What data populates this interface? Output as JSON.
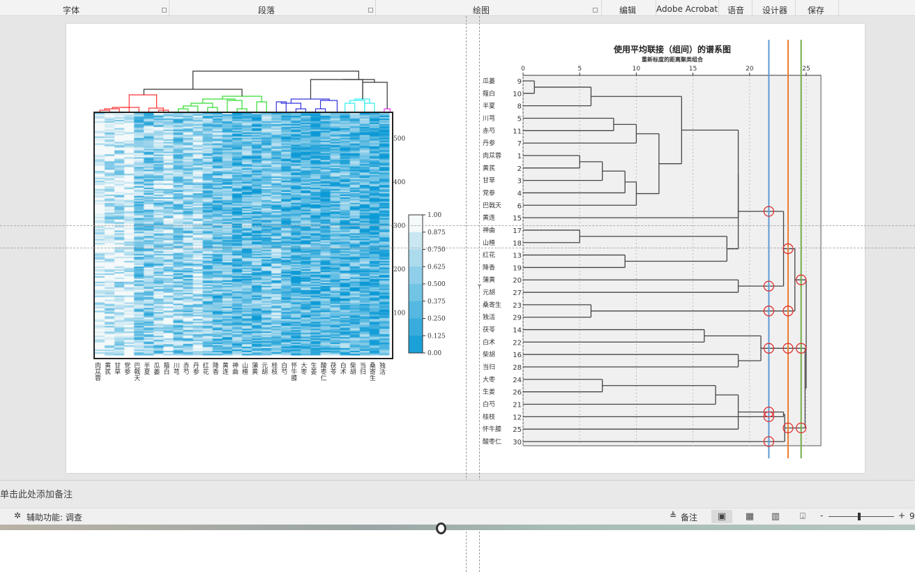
{
  "ribbon": {
    "groups": [
      {
        "label": "字体",
        "launcher": true
      },
      {
        "label": "段落",
        "launcher": true
      },
      {
        "label": "绘图",
        "launcher": true
      },
      {
        "label": "编辑"
      },
      {
        "label": "Adobe Acrobat"
      },
      {
        "label": "语音"
      },
      {
        "label": "设计器"
      },
      {
        "label": "保存"
      }
    ]
  },
  "notes": {
    "placeholder": "单击此处添加备注"
  },
  "status": {
    "accessibility": "辅助功能: 调查",
    "notes_button": "备注",
    "zoom_minus": "-",
    "zoom_plus": "+",
    "zoom_value_partial": "9"
  },
  "heatmap": {
    "columns": [
      "肉苁蓉",
      "黄芪",
      "甘草",
      "党参",
      "巴戟天",
      "半夏",
      "瓜蒌",
      "薤白",
      "川芎",
      "赤芍",
      "丹参",
      "红花",
      "降香",
      "黄连",
      "神曲",
      "山楂",
      "蒲黄",
      "元胡",
      "桂枝",
      "白芍",
      "怀牛膝",
      "大枣",
      "生姜",
      "酸枣仁",
      "茯苓",
      "白术",
      "柴胡",
      "当归",
      "桑寄生",
      "独活"
    ],
    "y_ticks": [
      100,
      200,
      300,
      400,
      500
    ],
    "y_range": [
      0,
      550
    ],
    "colorbar_ticks": [
      "1.00",
      "0.875",
      "0.750",
      "0.625",
      "0.500",
      "0.375",
      "0.250",
      "0.125",
      "0.00"
    ],
    "colors": {
      "low": "#0d9ad6",
      "high": "#f4f9f9"
    },
    "cluster_colors": [
      "#ff3333",
      "#33dd33",
      "#3333dd",
      "#33eeee",
      "#ee33ee",
      "#333333"
    ]
  },
  "dendrogram": {
    "title": "使用平均联接（组间）的谱系图",
    "subtitle": "重新标度的距离聚类组合",
    "x_ticks": [
      0,
      5,
      10,
      15,
      20,
      25
    ],
    "x_range": [
      0,
      26.3
    ],
    "y_axis_label": "Y",
    "leaves": [
      {
        "id": 9,
        "name": "瓜蒌"
      },
      {
        "id": 10,
        "name": "薤白"
      },
      {
        "id": 8,
        "name": "半夏"
      },
      {
        "id": 5,
        "name": "川芎"
      },
      {
        "id": 11,
        "name": "赤芍"
      },
      {
        "id": 7,
        "name": "丹参"
      },
      {
        "id": 1,
        "name": "肉苁蓉"
      },
      {
        "id": 2,
        "name": "黄芪"
      },
      {
        "id": 3,
        "name": "甘草"
      },
      {
        "id": 4,
        "name": "党参"
      },
      {
        "id": 6,
        "name": "巴戟天"
      },
      {
        "id": 15,
        "name": "黄连"
      },
      {
        "id": 17,
        "name": "神曲"
      },
      {
        "id": 18,
        "name": "山楂"
      },
      {
        "id": 13,
        "name": "红花"
      },
      {
        "id": 19,
        "name": "降香"
      },
      {
        "id": 20,
        "name": "蒲黄"
      },
      {
        "id": 27,
        "name": "元胡"
      },
      {
        "id": 23,
        "name": "桑寄生"
      },
      {
        "id": 29,
        "name": "独活"
      },
      {
        "id": 14,
        "name": "茯苓"
      },
      {
        "id": 22,
        "name": "白术"
      },
      {
        "id": 16,
        "name": "柴胡"
      },
      {
        "id": 28,
        "name": "当归"
      },
      {
        "id": 24,
        "name": "大枣"
      },
      {
        "id": 26,
        "name": "生姜"
      },
      {
        "id": 21,
        "name": "白芍"
      },
      {
        "id": 12,
        "name": "桂枝"
      },
      {
        "id": 25,
        "name": "怀牛膝"
      },
      {
        "id": 30,
        "name": "酸枣仁"
      }
    ],
    "merges": [
      [
        9,
        10,
        1
      ],
      [
        "c0",
        8,
        6
      ],
      [
        5,
        11,
        8
      ],
      [
        "c2",
        7,
        10
      ],
      [
        1,
        2,
        5
      ],
      [
        "c4",
        3,
        7
      ],
      [
        "c5",
        4,
        9
      ],
      [
        "c6",
        6,
        10
      ],
      [
        "c3",
        "c7",
        12
      ],
      [
        "c1",
        "c8",
        14
      ],
      [
        "c9",
        15,
        19
      ],
      [
        17,
        18,
        5
      ],
      [
        13,
        19,
        9
      ],
      [
        "c11",
        "c12",
        18
      ],
      [
        "c10",
        "c13",
        19
      ],
      [
        20,
        27,
        19
      ],
      [
        "c14",
        "c15",
        23
      ],
      [
        23,
        29,
        6
      ],
      [
        "c16",
        "c17",
        24
      ],
      [
        14,
        22,
        16
      ],
      [
        16,
        28,
        19
      ],
      [
        "c19",
        "c20",
        21
      ],
      [
        24,
        26,
        7
      ],
      [
        "c22",
        21,
        17
      ],
      [
        "c23",
        25,
        19
      ],
      [
        "c24",
        12,
        23
      ],
      [
        "c25",
        30,
        23.1
      ],
      [
        "c21",
        "c26",
        24.9
      ],
      [
        "c18",
        "c27",
        25
      ]
    ],
    "cut_lines": [
      {
        "distance": 21.7,
        "color": "#5b9bd5"
      },
      {
        "distance": 23.4,
        "color": "#ed7d31"
      },
      {
        "distance": 24.55,
        "color": "#70ad47"
      }
    ],
    "marker_color": "#e03030"
  }
}
